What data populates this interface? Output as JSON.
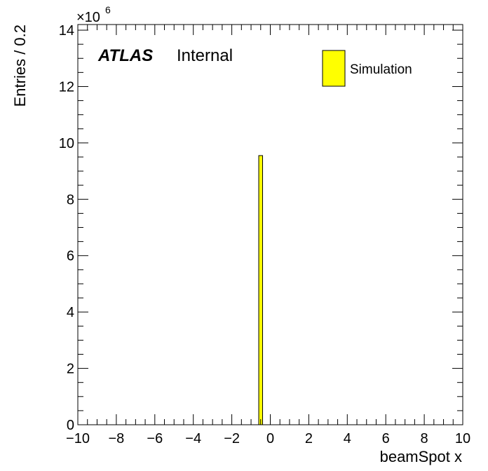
{
  "chart_data": {
    "type": "bar",
    "xlabel": "beamSpot x",
    "ylabel": "Entries / 0.2",
    "xlim": [
      -10,
      10
    ],
    "ylim": [
      0,
      14.2
    ],
    "y_multiplier": "×10",
    "y_multiplier_exponent": "6",
    "xticks": [
      -10,
      -8,
      -6,
      -4,
      -2,
      0,
      2,
      4,
      6,
      8,
      10
    ],
    "yticks": [
      0,
      2,
      4,
      6,
      8,
      10,
      12,
      14
    ],
    "bin_width": 0.2,
    "bins": [
      {
        "x0": -0.6,
        "x1": -0.4,
        "value": 9.55
      }
    ],
    "bar_color": "#ffff00",
    "edge_color": "#000000",
    "legend": [
      {
        "label": "Simulation",
        "color": "#ffff00"
      }
    ],
    "legend_position": "top-right",
    "experiment": "ATLAS",
    "status": "Internal",
    "grid": false
  }
}
